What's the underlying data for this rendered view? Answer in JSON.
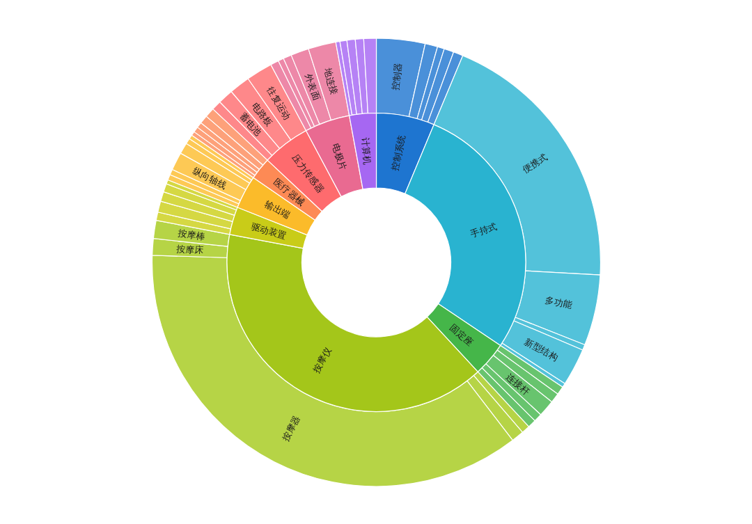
{
  "chart_data": {
    "type": "donut",
    "categories": [
      "控制器",
      null,
      null,
      null,
      null,
      "便携式",
      "多功能",
      null,
      "新型结构",
      null,
      null,
      null,
      "连接杆",
      null,
      null,
      null,
      null,
      "按摩器",
      "按摩床",
      "按摩棒",
      null,
      null,
      null,
      null,
      null,
      null,
      null,
      "纵向轴线",
      null,
      null,
      null,
      null,
      null,
      null,
      null,
      null,
      null,
      "蓄电池",
      "电路板",
      "往复运动",
      null,
      null,
      null,
      "外表面",
      "地连接",
      null,
      null,
      null,
      null,
      null
    ],
    "series": [
      {
        "values": [
          3.5,
          0.9,
          0.5,
          0.7,
          0.7,
          19.6,
          5.1,
          0.4,
          2.7,
          0.3,
          0.6,
          0.7,
          1.2,
          0.6,
          0.6,
          0.6,
          0.9,
          35.9,
          1.2,
          1.3,
          0.6,
          0.8,
          0.7,
          0.6,
          0.3,
          0.4,
          0.4,
          1.3,
          0.8,
          0.4,
          0.3,
          0.3,
          0.4,
          0.4,
          0.6,
          0.7,
          0.7,
          1.1,
          1.5,
          1.9,
          0.6,
          0.4,
          0.6,
          1.3,
          2.0,
          0.3,
          0.5,
          0.6,
          0.6,
          0.9
        ],
        "colors": [
          "#4a90d9",
          "#4a90d9",
          "#4a90d9",
          "#4a90d9",
          "#4a90d9",
          "#53c2da",
          "#53c2da",
          "#53c2da",
          "#53c2da",
          "#53c2da",
          "#68c46e",
          "#68c46e",
          "#68c46e",
          "#68c46e",
          "#68c46e",
          "#b6d446",
          "#b6d446",
          "#b6d446",
          "#b6d446",
          "#b6d446",
          "#d5d843",
          "#d5d843",
          "#d5d843",
          "#d5d843",
          "#d5d843",
          "#fdc955",
          "#fdc955",
          "#fdc955",
          "#fdc955",
          "#fdc955",
          "#fdc955",
          "#fda17a",
          "#fda17a",
          "#fda17a",
          "#fda17a",
          "#fda17a",
          "#fe888a",
          "#fe888a",
          "#fe888a",
          "#fe888a",
          "#ed88a8",
          "#ed88a8",
          "#ed88a8",
          "#ed88a8",
          "#ed88a8",
          "#b682f5",
          "#b682f5",
          "#b682f5",
          "#b682f5",
          "#b682f5"
        ]
      },
      {
        "values": [
          6.3,
          null,
          null,
          null,
          null,
          28.1,
          null,
          null,
          null,
          null,
          3.7,
          null,
          null,
          null,
          null,
          39.9,
          null,
          null,
          null,
          null,
          3.0,
          null,
          null,
          null,
          null,
          3.6,
          null,
          null,
          null,
          null,
          null,
          2.4,
          null,
          null,
          null,
          null,
          5.2,
          null,
          null,
          null,
          4.9,
          null,
          null,
          null,
          null,
          2.9,
          null,
          null,
          null,
          null
        ],
        "value_labels": [
          "控制系统",
          null,
          null,
          null,
          null,
          "手持式",
          null,
          null,
          null,
          null,
          "固定座",
          null,
          null,
          null,
          null,
          "按摩仪",
          null,
          null,
          null,
          null,
          "驱动装置",
          null,
          null,
          null,
          null,
          "输出端",
          null,
          null,
          null,
          null,
          null,
          "医疗器械",
          null,
          null,
          null,
          null,
          "压力传感器",
          null,
          null,
          null,
          "电极片",
          null,
          null,
          null,
          null,
          "计算机",
          null,
          null,
          null,
          null
        ],
        "colors": [
          "#1e75d0",
          null,
          null,
          null,
          null,
          "#29b3d0",
          null,
          null,
          null,
          null,
          "#45b649",
          null,
          null,
          null,
          null,
          "#a4c61a",
          null,
          null,
          null,
          null,
          "#c9cc18",
          null,
          null,
          null,
          null,
          "#fbbb2a",
          null,
          null,
          null,
          null,
          null,
          "#fd8a55",
          null,
          null,
          null,
          null,
          "#fe6b6e",
          null,
          null,
          null,
          "#e96a91",
          null,
          null,
          null,
          null,
          "#a667f2",
          null,
          null,
          null,
          null
        ]
      }
    ]
  }
}
